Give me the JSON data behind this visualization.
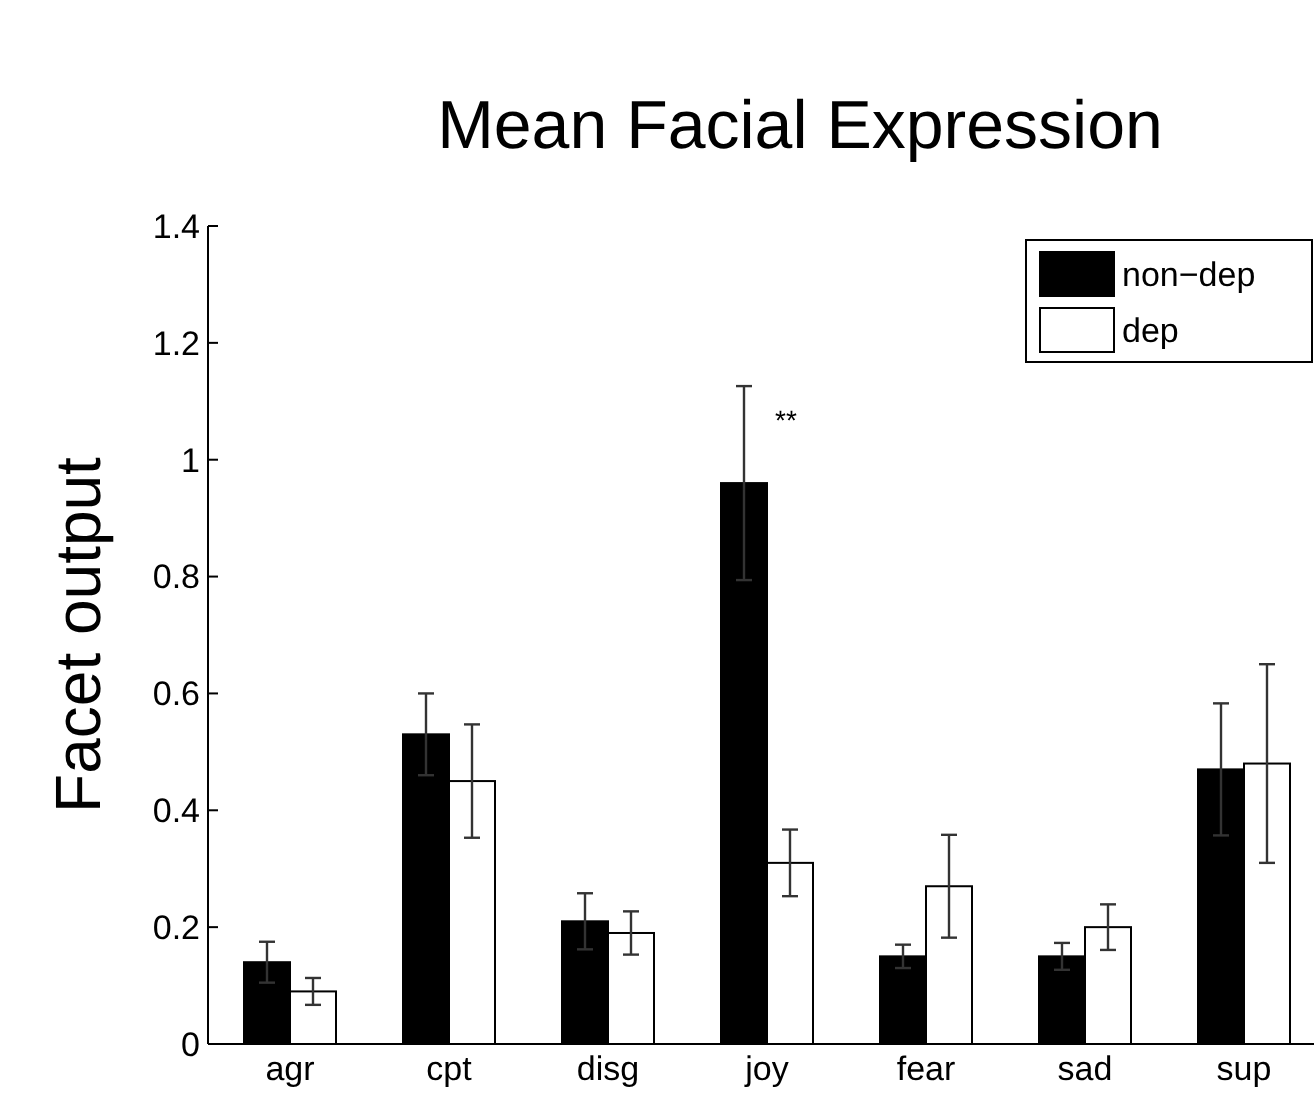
{
  "chart_data": {
    "type": "bar",
    "title": "Mean Facial Expression",
    "ylabel": "Facet output",
    "categories": [
      "agr",
      "cpt",
      "disg",
      "joy",
      "fear",
      "sad",
      "sup"
    ],
    "series": [
      {
        "name": "non−dep",
        "color": "#000000",
        "values": [
          0.14,
          0.53,
          0.21,
          0.96,
          0.15,
          0.15,
          0.47
        ],
        "errors": [
          0.035,
          0.07,
          0.048,
          0.166,
          0.02,
          0.023,
          0.113
        ]
      },
      {
        "name": "dep",
        "color": "#ffffff",
        "values": [
          0.09,
          0.45,
          0.19,
          0.31,
          0.27,
          0.2,
          0.48
        ],
        "errors": [
          0.023,
          0.097,
          0.037,
          0.057,
          0.088,
          0.039,
          0.17
        ]
      }
    ],
    "annotations": [
      "**"
    ],
    "ylim": [
      0,
      1.4
    ],
    "yticks": [
      0,
      0.2,
      0.4,
      0.6,
      0.8,
      1,
      1.2,
      1.4
    ],
    "grid": false,
    "legend": "top right"
  }
}
